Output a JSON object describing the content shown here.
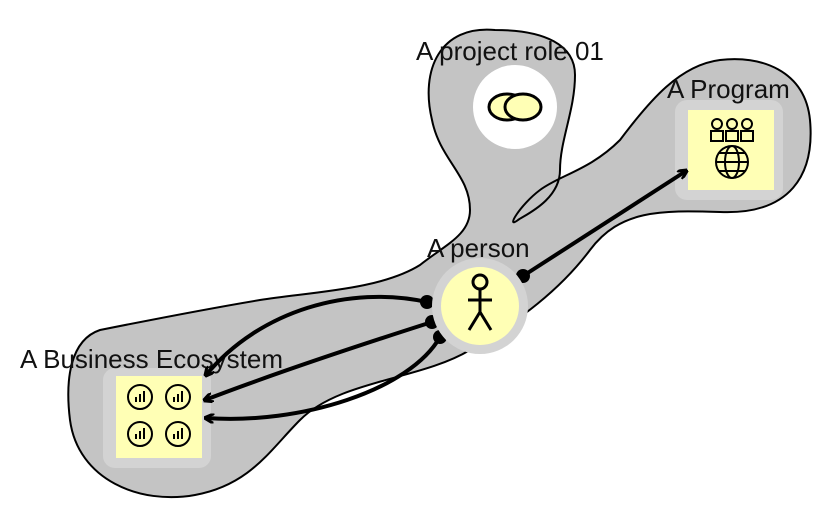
{
  "colors": {
    "background": "#ffffff",
    "blob_fill": "#c4c4c4",
    "blob_stroke": "#000000",
    "node_inner": "#d3d3d3",
    "node_fill": "#ffffb5",
    "role_circle": "#ffffff",
    "arrow": "#000000"
  },
  "nodes": {
    "project_role": {
      "label": "A project role 01",
      "icon": "role-icon"
    },
    "program": {
      "label": "A Program",
      "icon": "program-icon"
    },
    "person": {
      "label": "A person",
      "icon": "person-icon"
    },
    "business_ecosystem": {
      "label": "A Business Ecosystem",
      "icon": "ecosystem-icon"
    }
  },
  "connections": [
    {
      "from": "person",
      "to": "program",
      "kind": "arrow"
    },
    {
      "from": "person",
      "to": "business_ecosystem",
      "kind": "arrow"
    },
    {
      "from": "person",
      "to": "business_ecosystem",
      "kind": "arrow"
    },
    {
      "from": "person",
      "to": "business_ecosystem",
      "kind": "arrow"
    }
  ]
}
